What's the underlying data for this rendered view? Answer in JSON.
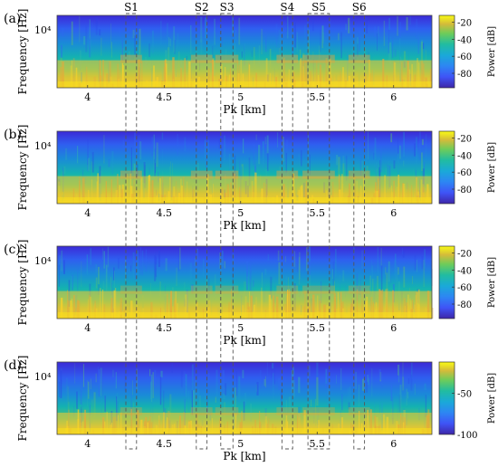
{
  "chart_data": [
    {
      "type": "heatmap",
      "panel": "(a)",
      "xlabel": "Pk [km]",
      "ylabel": "Frequency [Hz]",
      "x_ticks": [
        "4",
        "4.5",
        "5",
        "5.5",
        "6"
      ],
      "x_tick_values": [
        4,
        4.5,
        5,
        5.5,
        6
      ],
      "xlim": [
        3.8,
        6.25
      ],
      "y_ticks": [
        "10⁴"
      ],
      "colorbar": {
        "label": "Power [dB]",
        "ticks": [
          "-20",
          "-40",
          "-60",
          "-80"
        ],
        "tick_values": [
          -20,
          -40,
          -60,
          -80
        ],
        "range": [
          -97,
          -12
        ]
      },
      "colormap": "parula",
      "show_x_axis": true
    },
    {
      "type": "heatmap",
      "panel": "(b)",
      "xlabel": "Pk [km]",
      "ylabel": "Frequency [Hz]",
      "x_ticks": [
        "4",
        "4.5",
        "5",
        "5.5",
        "6"
      ],
      "x_tick_values": [
        4,
        4.5,
        5,
        5.5,
        6
      ],
      "xlim": [
        3.8,
        6.25
      ],
      "y_ticks": [
        "10⁴"
      ],
      "colorbar": {
        "label": "Power [dB]",
        "ticks": [
          "-20",
          "-40",
          "-60",
          "-80"
        ],
        "tick_values": [
          -20,
          -40,
          -60,
          -80
        ],
        "range": [
          -97,
          -12
        ]
      },
      "colormap": "parula",
      "show_x_axis": true
    },
    {
      "type": "heatmap",
      "panel": "(c)",
      "xlabel": "Pk [km]",
      "ylabel": "Frequency [Hz]",
      "x_ticks": [
        "4",
        "4.5",
        "5",
        "5.5",
        "6"
      ],
      "x_tick_values": [
        4,
        4.5,
        5,
        5.5,
        6
      ],
      "xlim": [
        3.8,
        6.25
      ],
      "y_ticks": [
        "10⁴"
      ],
      "colorbar": {
        "label": "Power [dB]",
        "ticks": [
          "-20",
          "-40",
          "-60",
          "-80"
        ],
        "tick_values": [
          -20,
          -40,
          -60,
          -80
        ],
        "range": [
          -97,
          -12
        ]
      },
      "colormap": "parula",
      "show_x_axis": true
    },
    {
      "type": "heatmap",
      "panel": "(d)",
      "xlabel": "Pk [km]",
      "ylabel": "Frequency [Hz]",
      "x_ticks": [
        "4",
        "4.5",
        "5",
        "5.5",
        "6"
      ],
      "x_tick_values": [
        4,
        4.5,
        5,
        5.5,
        6
      ],
      "xlim": [
        3.8,
        6.25
      ],
      "y_ticks": [
        "10⁴"
      ],
      "colorbar": {
        "label": "Power [dB]",
        "ticks": [
          "-50",
          "-100"
        ],
        "tick_values": [
          -50,
          -100
        ],
        "range": [
          -100,
          -12
        ]
      },
      "colormap": "parula",
      "show_x_axis": true
    }
  ],
  "regions": [
    {
      "label": "S1",
      "x_start": 4.25,
      "x_end": 4.32
    },
    {
      "label": "S2",
      "x_start": 4.71,
      "x_end": 4.78
    },
    {
      "label": "S3",
      "x_start": 4.87,
      "x_end": 4.95
    },
    {
      "label": "S4",
      "x_start": 5.27,
      "x_end": 5.34
    },
    {
      "label": "S5",
      "x_start": 5.44,
      "x_end": 5.58
    },
    {
      "label": "S6",
      "x_start": 5.74,
      "x_end": 5.81
    }
  ]
}
